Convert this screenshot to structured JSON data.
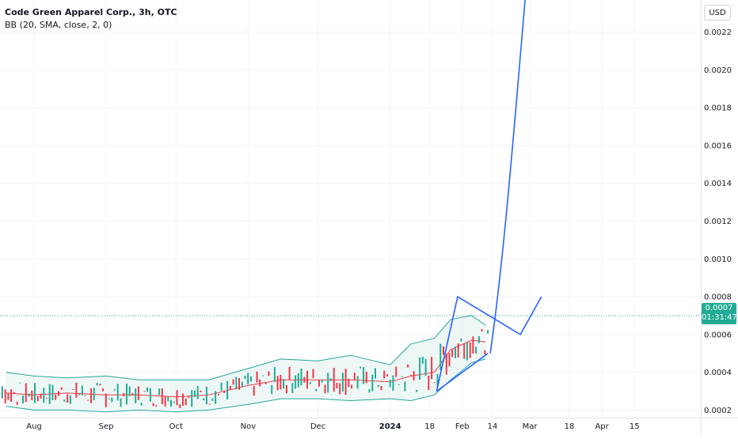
{
  "header": {
    "symbol": "Code Green Apparel Corp., 3h, OTC",
    "indicator": "BB (20, SMA, close, 2, 0)",
    "currency": "USD"
  },
  "last_price": {
    "value": "0.0007",
    "countdown": "01:31:47"
  },
  "colors": {
    "up": "#22ab94",
    "down": "#f23645",
    "bb_band": "#26a69a",
    "bb_basis": "#f23645",
    "bb_fill": "#e6f4f2",
    "drawing": "#2962ff",
    "axis_text": "#131722"
  },
  "chart_data": {
    "type": "candlestick",
    "y_axis": {
      "ticks": [
        "0.0002",
        "0.0004",
        "0.0006",
        "0.0008",
        "0.0010",
        "0.0012",
        "0.0014",
        "0.0016",
        "0.0018",
        "0.0020",
        "0.0022"
      ],
      "range": [
        0.00016,
        0.00237
      ]
    },
    "x_axis": {
      "ticks": [
        "Aug",
        "Sep",
        "Oct",
        "Nov",
        "Dec",
        "2024",
        "18",
        "Feb",
        "14",
        "Mar",
        "18",
        "Apr",
        "15"
      ]
    },
    "last_value": 0.0007,
    "bollinger": {
      "dates": [
        "2023-07-20",
        "2023-08-01",
        "2023-08-15",
        "2023-09-01",
        "2023-09-15",
        "2023-10-01",
        "2023-10-15",
        "2023-11-01",
        "2023-11-15",
        "2023-12-01",
        "2023-12-15",
        "2024-01-01",
        "2024-01-10",
        "2024-01-20",
        "2024-01-27",
        "2024-02-05",
        "2024-02-11"
      ],
      "upper": [
        0.0004,
        0.00038,
        0.00037,
        0.00038,
        0.00036,
        0.00036,
        0.00036,
        0.00042,
        0.00047,
        0.00046,
        0.00049,
        0.00044,
        0.00055,
        0.00058,
        0.00068,
        0.0007,
        0.00065
      ],
      "basis": [
        0.00029,
        0.00028,
        0.00029,
        0.00028,
        0.00028,
        0.00027,
        0.00028,
        0.00033,
        0.00036,
        0.00036,
        0.00036,
        0.00035,
        0.00038,
        0.0004,
        0.00052,
        0.00057,
        0.00056
      ],
      "lower": [
        0.00022,
        0.0002,
        0.0002,
        0.00019,
        0.0002,
        0.00019,
        0.0002,
        0.00023,
        0.00026,
        0.00026,
        0.00025,
        0.00026,
        0.00025,
        0.00028,
        0.00036,
        0.00045,
        0.00047
      ]
    },
    "drawings": {
      "triangle": [
        [
          "2024-01-21",
          0.0003
        ],
        [
          "2024-01-30",
          0.0008
        ],
        [
          "2024-02-26",
          0.0006
        ],
        [
          "2024-03-06",
          0.0008
        ]
      ],
      "triangle_lower_edge": [
        [
          "2024-01-21",
          0.0003
        ],
        [
          "2024-02-12",
          0.0005
        ]
      ],
      "projection": [
        [
          "2024-02-13",
          0.0005
        ],
        [
          "2024-02-19",
          0.001
        ],
        [
          "2024-02-24",
          0.0018
        ],
        [
          "2024-02-28",
          0.00237
        ]
      ]
    }
  }
}
